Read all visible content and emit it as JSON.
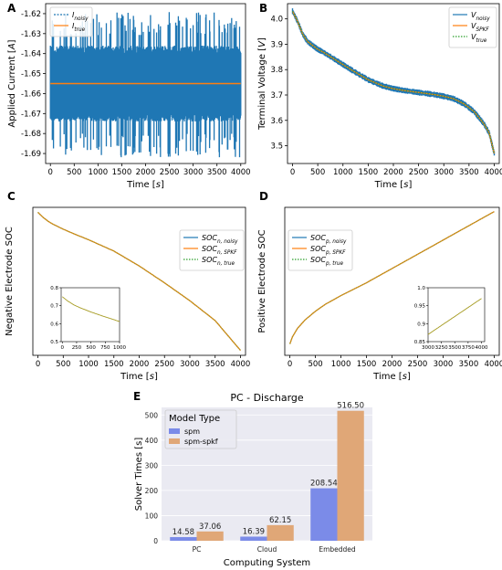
{
  "colors": {
    "noisy": "#1f77b4",
    "kf": "#ff7f0e",
    "true": "#2ca02c",
    "overlap": "#a59a1f",
    "spm": "#7b8be8",
    "spkf": "#e0a777",
    "seaborn_bg": "#eaeaf2"
  },
  "chart_data": [
    {
      "id": "A",
      "panel_label": "A",
      "type": "line",
      "xlabel": "Time [s]",
      "ylabel": "Applied Current [A]",
      "xlim": [
        -100,
        4100
      ],
      "ylim": [
        -1.695,
        -1.615
      ],
      "xticks": [
        0,
        500,
        1000,
        1500,
        2000,
        2500,
        3000,
        3500,
        4000
      ],
      "yticks": [
        -1.62,
        -1.63,
        -1.64,
        -1.65,
        -1.66,
        -1.67,
        -1.68,
        -1.69
      ],
      "legend_position": "top-left",
      "noise_band": {
        "inner": [
          -1.67,
          -1.64
        ],
        "outer": [
          -1.692,
          -1.619
        ]
      },
      "series": [
        {
          "name": "I_noisy",
          "style": "dotted",
          "color_key": "noisy",
          "note_values": "noisy signal, mean -1.655"
        },
        {
          "name": "I_true",
          "style": "solid",
          "color_key": "kf",
          "x": [
            0,
            4000
          ],
          "y": [
            -1.655,
            -1.655
          ]
        }
      ],
      "legend": [
        {
          "main": "I",
          "sub": "noisy"
        },
        {
          "main": "I",
          "sub": "true"
        }
      ]
    },
    {
      "id": "B",
      "panel_label": "B",
      "type": "line",
      "xlabel": "Time [s]",
      "ylabel": "Terminal Voltage [V]",
      "xlim": [
        -100,
        4100
      ],
      "ylim": [
        3.43,
        4.06
      ],
      "xticks": [
        0,
        500,
        1000,
        1500,
        2000,
        2500,
        3000,
        3500,
        4000
      ],
      "yticks": [
        4.0,
        3.9,
        3.8,
        3.7,
        3.6,
        3.5
      ],
      "legend_position": "top-right",
      "series": [
        {
          "name": "V_noisy",
          "style": "solid",
          "color_key": "noisy"
        },
        {
          "name": "V_SPKF",
          "style": "solid",
          "color_key": "kf"
        },
        {
          "name": "V_true",
          "style": "dotted",
          "color_key": "true"
        }
      ],
      "curve": {
        "x": [
          0,
          100,
          200,
          300,
          400,
          500,
          600,
          800,
          1000,
          1200,
          1500,
          1800,
          2000,
          2200,
          2500,
          2800,
          3000,
          3200,
          3400,
          3600,
          3800,
          3900,
          4000
        ],
        "y": [
          4.03,
          3.99,
          3.94,
          3.91,
          3.895,
          3.88,
          3.87,
          3.845,
          3.82,
          3.795,
          3.76,
          3.735,
          3.725,
          3.718,
          3.71,
          3.702,
          3.695,
          3.685,
          3.665,
          3.635,
          3.585,
          3.55,
          3.47
        ]
      },
      "noise_halfwidth": 0.012,
      "legend": [
        {
          "main": "V",
          "sub": "noisy"
        },
        {
          "main": "V",
          "sub": "SPKF"
        },
        {
          "main": "V",
          "sub": "true"
        }
      ]
    },
    {
      "id": "C",
      "panel_label": "C",
      "type": "line",
      "xlabel": "Time [s]",
      "ylabel": "Negative Electrode SOC",
      "xlim": [
        -100,
        4100
      ],
      "ylim": [
        0.03,
        0.775
      ],
      "xticks": [
        0,
        500,
        1000,
        1500,
        2000,
        2500,
        3000,
        3500,
        4000
      ],
      "yticks": [],
      "legend_position": "top-right",
      "series": [
        {
          "name": "SOC_n,noisy",
          "style": "solid",
          "color_key": "noisy"
        },
        {
          "name": "SOC_n,SPKF",
          "style": "solid",
          "color_key": "kf"
        },
        {
          "name": "SOC_n,true",
          "style": "dotted",
          "color_key": "true"
        }
      ],
      "curve": {
        "x": [
          0,
          100,
          200,
          300,
          500,
          700,
          1000,
          1500,
          2000,
          2500,
          3000,
          3500,
          4000
        ],
        "y": [
          0.75,
          0.725,
          0.705,
          0.69,
          0.665,
          0.643,
          0.612,
          0.555,
          0.48,
          0.395,
          0.305,
          0.205,
          0.055
        ]
      },
      "inset": {
        "xlim": [
          -20,
          1000
        ],
        "ylim": [
          0.5,
          0.8
        ],
        "xticks": [
          0,
          250,
          500,
          750,
          1000
        ],
        "yticks": [
          0.5,
          0.6,
          0.7,
          0.8
        ]
      },
      "legend": [
        {
          "main": "SOC",
          "sub": "n, noisy"
        },
        {
          "main": "SOC",
          "sub": "n, SPKF"
        },
        {
          "main": "SOC",
          "sub": "n, true"
        }
      ]
    },
    {
      "id": "D",
      "panel_label": "D",
      "type": "line",
      "xlabel": "Time [s]",
      "ylabel": "Positive Electrode SOC",
      "xlim": [
        -100,
        4100
      ],
      "ylim": [
        0.465,
        0.985
      ],
      "xticks": [
        0,
        500,
        1000,
        1500,
        2000,
        2500,
        3000,
        3500,
        4000
      ],
      "yticks": [],
      "legend_position": "top-left",
      "series": [
        {
          "name": "SOC_p,noisy",
          "style": "solid",
          "color_key": "noisy"
        },
        {
          "name": "SOC_p,SPKF",
          "style": "solid",
          "color_key": "kf"
        },
        {
          "name": "SOC_p,true",
          "style": "dotted",
          "color_key": "true"
        }
      ],
      "curve": {
        "x": [
          0,
          50,
          150,
          300,
          500,
          700,
          1000,
          1500,
          2000,
          2500,
          3000,
          3500,
          4000
        ],
        "y": [
          0.505,
          0.53,
          0.56,
          0.59,
          0.62,
          0.645,
          0.675,
          0.72,
          0.77,
          0.82,
          0.87,
          0.92,
          0.97
        ]
      },
      "inset": {
        "xlim": [
          3000,
          4060
        ],
        "ylim": [
          0.85,
          1.0
        ],
        "xticks": [
          3000,
          3250,
          3500,
          3750,
          4000
        ],
        "yticks": [
          0.85,
          0.9,
          0.95,
          1.0
        ]
      },
      "legend": [
        {
          "main": "SOC",
          "sub": "p, noisy"
        },
        {
          "main": "SOC",
          "sub": "p, SPKF"
        },
        {
          "main": "SOC",
          "sub": "p, true"
        }
      ]
    },
    {
      "id": "E",
      "panel_label": "E",
      "type": "bar",
      "title": "PC - Discharge",
      "xlabel": "Computing System",
      "ylabel": "Solver Times [s]",
      "categories": [
        "PC",
        "Cloud",
        "Embedded"
      ],
      "ylim": [
        0,
        530
      ],
      "yticks": [
        0,
        100,
        200,
        300,
        400,
        500
      ],
      "grid": true,
      "legend_title": "Model Type",
      "legend_position": "top-left",
      "series": [
        {
          "name": "spm",
          "color_key": "spm",
          "values": [
            14.58,
            16.39,
            208.54
          ]
        },
        {
          "name": "spm-spkf",
          "color_key": "spkf",
          "values": [
            37.06,
            62.15,
            516.5
          ]
        }
      ],
      "data_labels": [
        [
          "14.58",
          "16.39",
          "208.54"
        ],
        [
          "37.06",
          "62.15",
          "516.50"
        ]
      ]
    }
  ]
}
